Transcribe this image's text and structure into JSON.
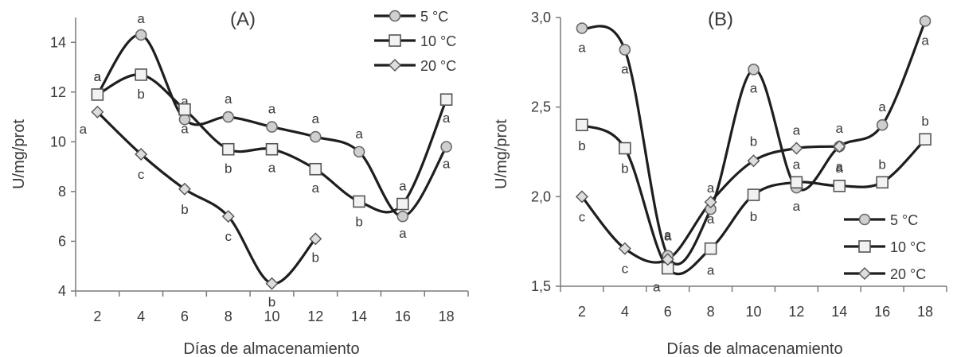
{
  "chart_data": [
    {
      "type": "line",
      "title": "(A)",
      "xlabel": "Días de almacenamiento",
      "ylabel": "U/mg/prot",
      "x_ticks": [
        "2",
        "4",
        "6",
        "8",
        "10",
        "12",
        "14",
        "16",
        "18"
      ],
      "y_ticks": [
        "4",
        "6",
        "8",
        "10",
        "12",
        "14"
      ],
      "xlim": [
        1,
        19
      ],
      "ylim": [
        4,
        15
      ],
      "legend_position": "top-right",
      "series": [
        {
          "name": "5 °C",
          "marker": "circle",
          "x": [
            2,
            4,
            6,
            8,
            10,
            12,
            14,
            16,
            18
          ],
          "y": [
            11.9,
            14.3,
            10.9,
            11.0,
            10.6,
            10.2,
            9.6,
            7.0,
            9.8
          ],
          "letters": [
            "a",
            "a",
            "a",
            "a",
            "a",
            "a",
            "a",
            "a",
            "a"
          ]
        },
        {
          "name": "10 °C",
          "marker": "square",
          "x": [
            2,
            4,
            6,
            8,
            10,
            12,
            14,
            16,
            18
          ],
          "y": [
            11.9,
            12.7,
            11.3,
            9.7,
            9.7,
            8.9,
            7.6,
            7.5,
            11.7
          ],
          "letters": [
            "a",
            "b",
            "a",
            "b",
            "a",
            "a",
            "b",
            "a",
            "a"
          ]
        },
        {
          "name": "20 °C",
          "marker": "diamond",
          "x": [
            2,
            4,
            6,
            8,
            10,
            12
          ],
          "y": [
            11.2,
            9.5,
            8.1,
            7.0,
            4.3,
            6.1
          ],
          "letters": [
            "a",
            "c",
            "b",
            "c",
            "b",
            "b"
          ]
        }
      ]
    },
    {
      "type": "line",
      "title": "(B)",
      "xlabel": "Días de almacenamiento",
      "ylabel": "U/mg/prot",
      "x_ticks": [
        "2",
        "4",
        "6",
        "8",
        "10",
        "12",
        "14",
        "16",
        "18"
      ],
      "y_ticks": [
        "1,5",
        "2,0",
        "2,5",
        "3,0"
      ],
      "xlim": [
        1,
        19
      ],
      "ylim": [
        1.5,
        3.0
      ],
      "legend_position": "bottom-right",
      "series": [
        {
          "name": "5 °C",
          "marker": "circle",
          "x": [
            2,
            4,
            6,
            8,
            10,
            12,
            14,
            16,
            18
          ],
          "y": [
            2.94,
            2.82,
            1.67,
            1.93,
            2.71,
            2.05,
            2.28,
            2.4,
            2.98
          ],
          "letters": [
            "a",
            "a",
            "a",
            "a",
            "a",
            "a",
            "a",
            "a",
            "a"
          ]
        },
        {
          "name": "10 °C",
          "marker": "square",
          "x": [
            2,
            4,
            6,
            8,
            10,
            12,
            14,
            16,
            18
          ],
          "y": [
            2.4,
            2.27,
            1.6,
            1.71,
            2.01,
            2.08,
            2.06,
            2.08,
            2.32
          ],
          "letters": [
            "b",
            "b",
            "a",
            "a",
            "b",
            "a",
            "a",
            "b",
            "b"
          ]
        },
        {
          "name": "20 °C",
          "marker": "diamond",
          "x": [
            2,
            4,
            6,
            8,
            10,
            12,
            14
          ],
          "y": [
            2.0,
            1.71,
            1.65,
            1.97,
            2.2,
            2.27,
            2.28
          ],
          "letters": [
            "c",
            "c",
            "a",
            "a",
            "b",
            "a",
            "a"
          ]
        }
      ]
    }
  ]
}
